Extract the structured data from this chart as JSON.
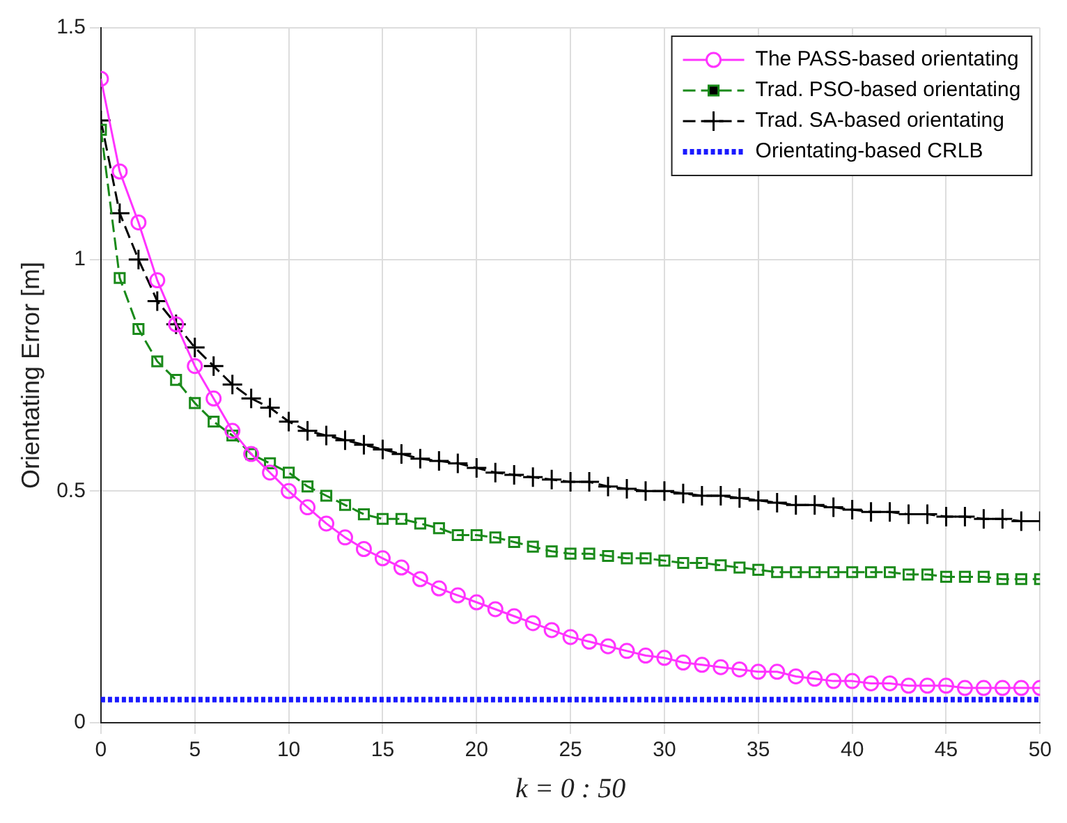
{
  "chart_data": {
    "type": "line",
    "xlabel": "k = 0 : 50",
    "ylabel": "Orientating Error [m]",
    "x": [
      0,
      1,
      2,
      3,
      4,
      5,
      6,
      7,
      8,
      9,
      10,
      11,
      12,
      13,
      14,
      15,
      16,
      17,
      18,
      19,
      20,
      21,
      22,
      23,
      24,
      25,
      26,
      27,
      28,
      29,
      30,
      31,
      32,
      33,
      34,
      35,
      36,
      37,
      38,
      39,
      40,
      41,
      42,
      43,
      44,
      45,
      46,
      47,
      48,
      49,
      50
    ],
    "series": [
      {
        "name": "The PASS-based orientating",
        "color": "#ff33ff",
        "marker": "circle",
        "line_style": "solid",
        "values": [
          1.39,
          1.19,
          1.08,
          0.955,
          0.86,
          0.77,
          0.7,
          0.63,
          0.58,
          0.54,
          0.5,
          0.465,
          0.43,
          0.4,
          0.375,
          0.355,
          0.335,
          0.31,
          0.29,
          0.275,
          0.26,
          0.245,
          0.23,
          0.215,
          0.2,
          0.185,
          0.175,
          0.165,
          0.155,
          0.145,
          0.14,
          0.13,
          0.125,
          0.12,
          0.115,
          0.11,
          0.11,
          0.1,
          0.095,
          0.09,
          0.09,
          0.085,
          0.085,
          0.08,
          0.08,
          0.08,
          0.075,
          0.075,
          0.075,
          0.075,
          0.075
        ]
      },
      {
        "name": "Trad. PSO-based orientating",
        "color": "#1a8a1a",
        "marker": "square",
        "line_style": "dashed",
        "values": [
          1.28,
          0.96,
          0.85,
          0.78,
          0.74,
          0.69,
          0.65,
          0.62,
          0.58,
          0.56,
          0.54,
          0.51,
          0.49,
          0.47,
          0.45,
          0.44,
          0.44,
          0.43,
          0.42,
          0.405,
          0.405,
          0.4,
          0.39,
          0.38,
          0.37,
          0.365,
          0.365,
          0.36,
          0.355,
          0.355,
          0.35,
          0.345,
          0.345,
          0.34,
          0.335,
          0.33,
          0.325,
          0.325,
          0.325,
          0.325,
          0.325,
          0.325,
          0.325,
          0.32,
          0.32,
          0.315,
          0.315,
          0.315,
          0.31,
          0.31,
          0.31
        ]
      },
      {
        "name": "Trad. SA-based orientating",
        "color": "#000000",
        "marker": "cross",
        "line_style": "dashed",
        "values": [
          1.3,
          1.1,
          1.0,
          0.91,
          0.86,
          0.81,
          0.77,
          0.73,
          0.7,
          0.68,
          0.65,
          0.63,
          0.62,
          0.61,
          0.6,
          0.59,
          0.58,
          0.57,
          0.565,
          0.56,
          0.55,
          0.54,
          0.535,
          0.53,
          0.525,
          0.52,
          0.52,
          0.51,
          0.505,
          0.5,
          0.5,
          0.495,
          0.49,
          0.49,
          0.485,
          0.48,
          0.475,
          0.47,
          0.47,
          0.465,
          0.46,
          0.455,
          0.455,
          0.45,
          0.45,
          0.445,
          0.445,
          0.44,
          0.44,
          0.435,
          0.435
        ]
      },
      {
        "name": "Orientating-based CRLB",
        "color": "#1a1aff",
        "marker": "none",
        "line_style": "dotted",
        "values": [
          0.05,
          0.05,
          0.05,
          0.05,
          0.05,
          0.05,
          0.05,
          0.05,
          0.05,
          0.05,
          0.05,
          0.05,
          0.05,
          0.05,
          0.05,
          0.05,
          0.05,
          0.05,
          0.05,
          0.05,
          0.05,
          0.05,
          0.05,
          0.05,
          0.05,
          0.05,
          0.05,
          0.05,
          0.05,
          0.05,
          0.05,
          0.05,
          0.05,
          0.05,
          0.05,
          0.05,
          0.05,
          0.05,
          0.05,
          0.05,
          0.05,
          0.05,
          0.05,
          0.05,
          0.05,
          0.05,
          0.05,
          0.05,
          0.05,
          0.05,
          0.05
        ]
      }
    ],
    "xlim": [
      0,
      50
    ],
    "xticks": [
      0,
      5,
      10,
      15,
      20,
      25,
      30,
      35,
      40,
      45,
      50
    ],
    "ylim": [
      0,
      1.5
    ],
    "yticks": [
      0,
      0.5,
      1,
      1.5
    ],
    "grid": true,
    "legend": "top right"
  }
}
